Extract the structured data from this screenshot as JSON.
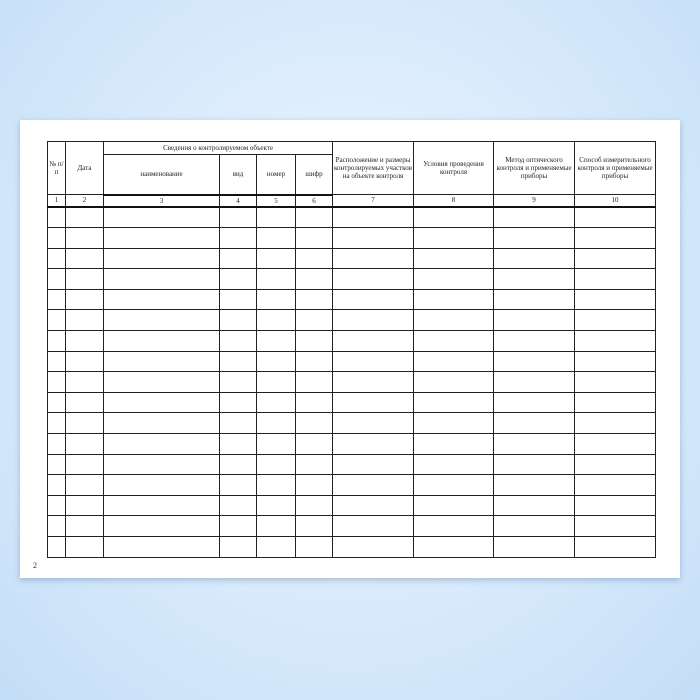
{
  "page_number": "2",
  "table": {
    "headers": {
      "no": "№ п/п",
      "date": "Дата",
      "object_info": "Сведения о контролируемом объекте",
      "name": "наименование",
      "type": "вид",
      "number": "номер",
      "code": "шифр",
      "location": "Расположение и размеры контролируемых участков на объекте контроля",
      "conditions": "Условия проведения контроля",
      "optical": "Метод оптического контроля и применяемые приборы",
      "measuring": "Способ измерительного контроля и применяемые приборы"
    },
    "column_numbers": [
      "1",
      "2",
      "3",
      "4",
      "5",
      "6",
      "7",
      "8",
      "9",
      "10"
    ],
    "blank_rows": 17
  }
}
